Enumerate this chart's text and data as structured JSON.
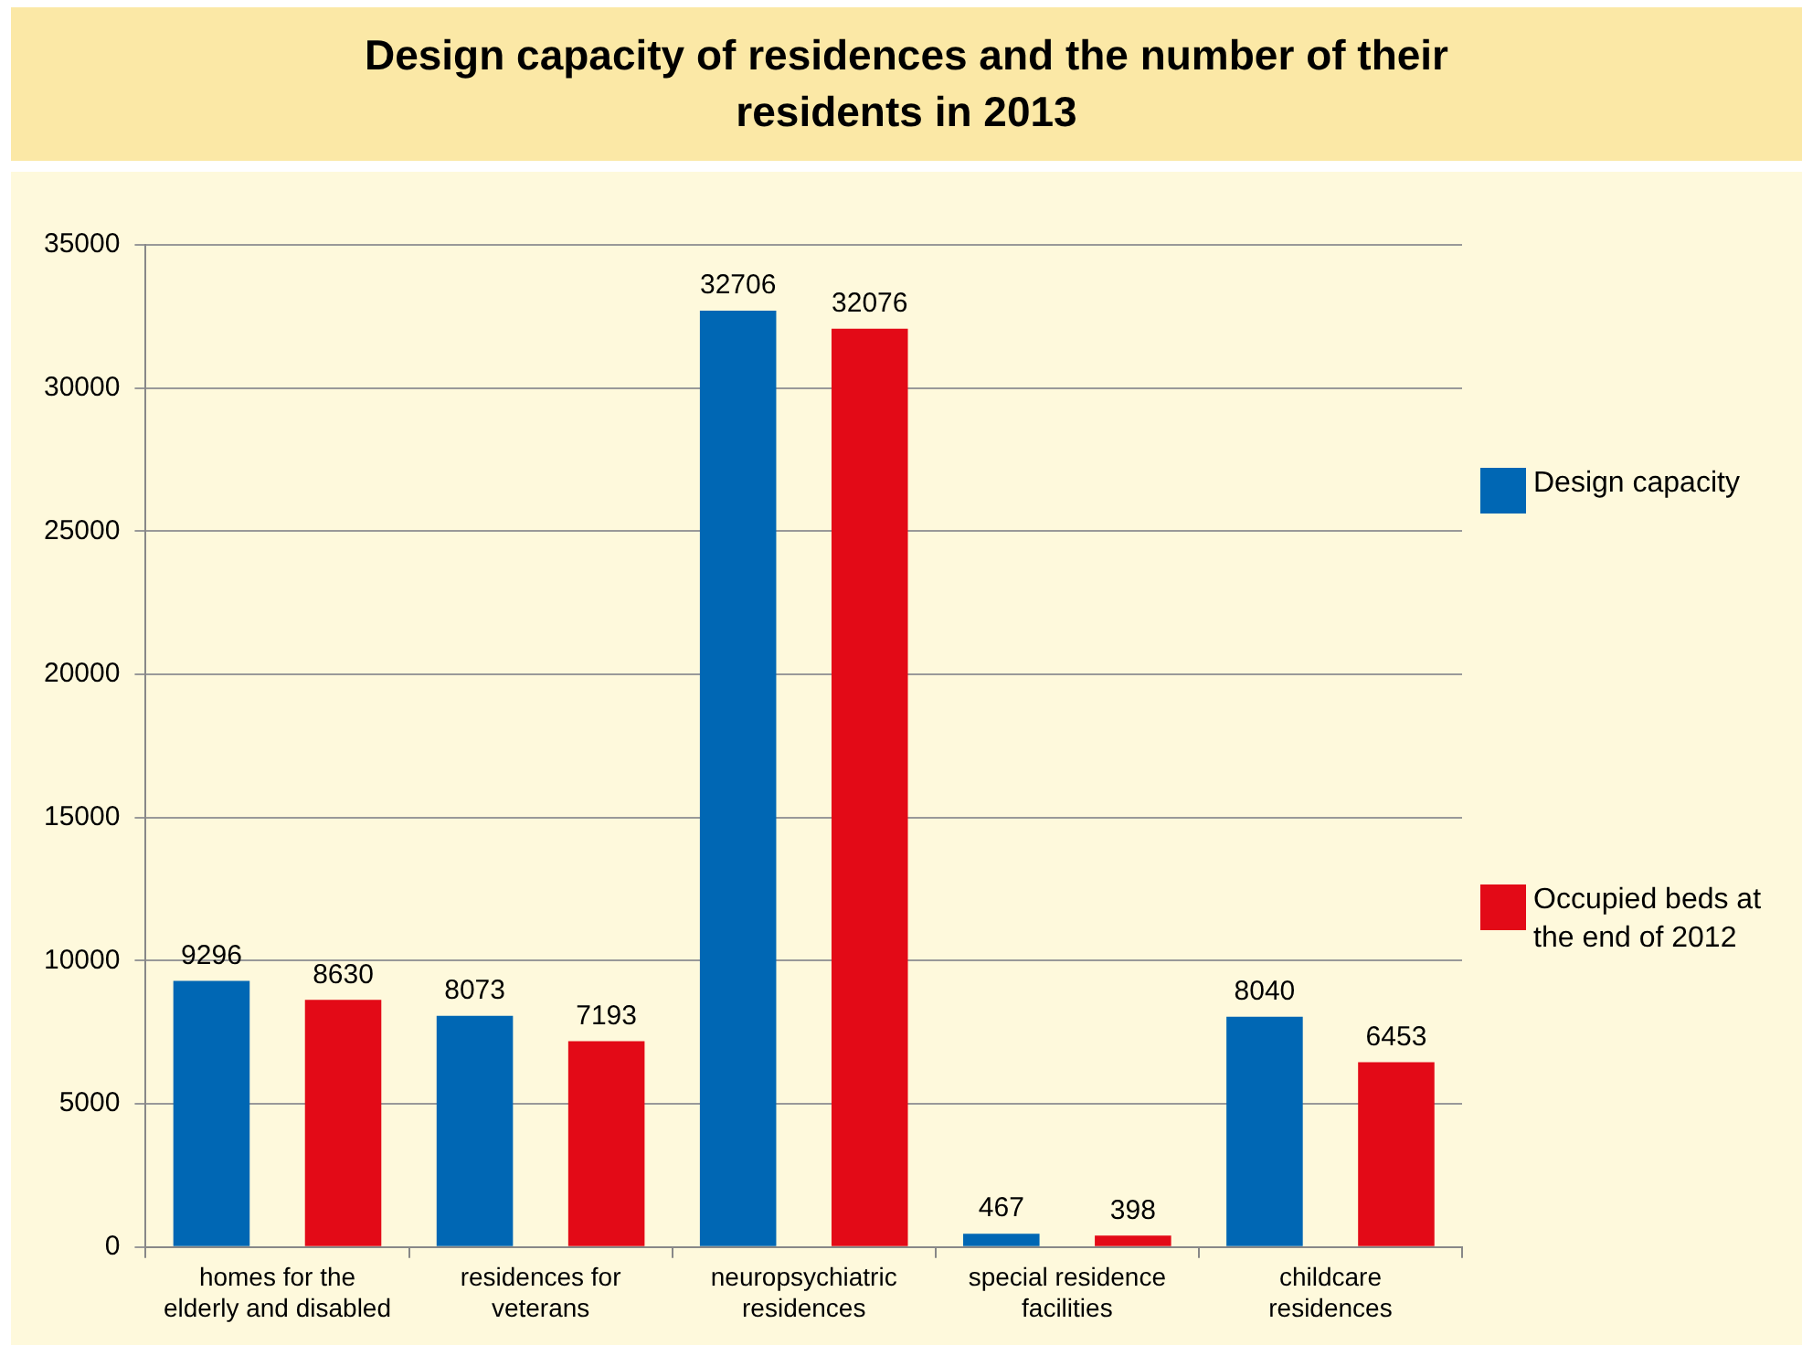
{
  "chart_data": {
    "type": "bar",
    "title": "Design capacity of residences and the number of their residents in 2013",
    "categories": [
      "homes for the elderly and disabled",
      "residences for veterans",
      "neuropsychiatric residences",
      "special residence facilities",
      "childcare residences"
    ],
    "series": [
      {
        "name": "Design capacity",
        "color": "#0067b4",
        "values": [
          9296,
          8073,
          32706,
          467,
          8040
        ]
      },
      {
        "name": "Occupied beds at the end of 2012",
        "color": "#e30a17",
        "values": [
          8630,
          7193,
          32076,
          398,
          6453
        ]
      }
    ],
    "ylim": [
      0,
      35000
    ],
    "yticks": [
      0,
      5000,
      10000,
      15000,
      20000,
      25000,
      30000,
      35000
    ],
    "grid": "y",
    "legend": "right",
    "data_labels": true
  }
}
